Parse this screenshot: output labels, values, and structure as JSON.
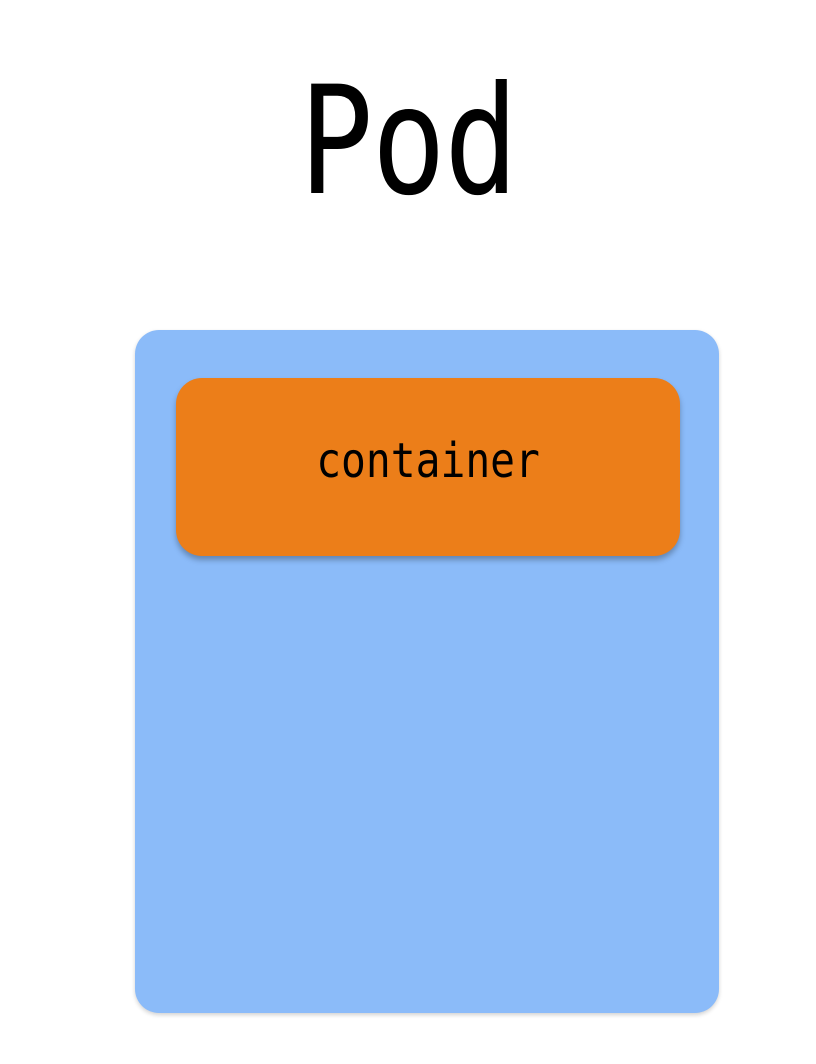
{
  "diagram": {
    "title": "Pod",
    "container_label": "container"
  },
  "colors": {
    "pod_fill": "#8bbbf9",
    "container_fill": "#ec7e19",
    "background": "#ffffff",
    "text": "#000000"
  }
}
